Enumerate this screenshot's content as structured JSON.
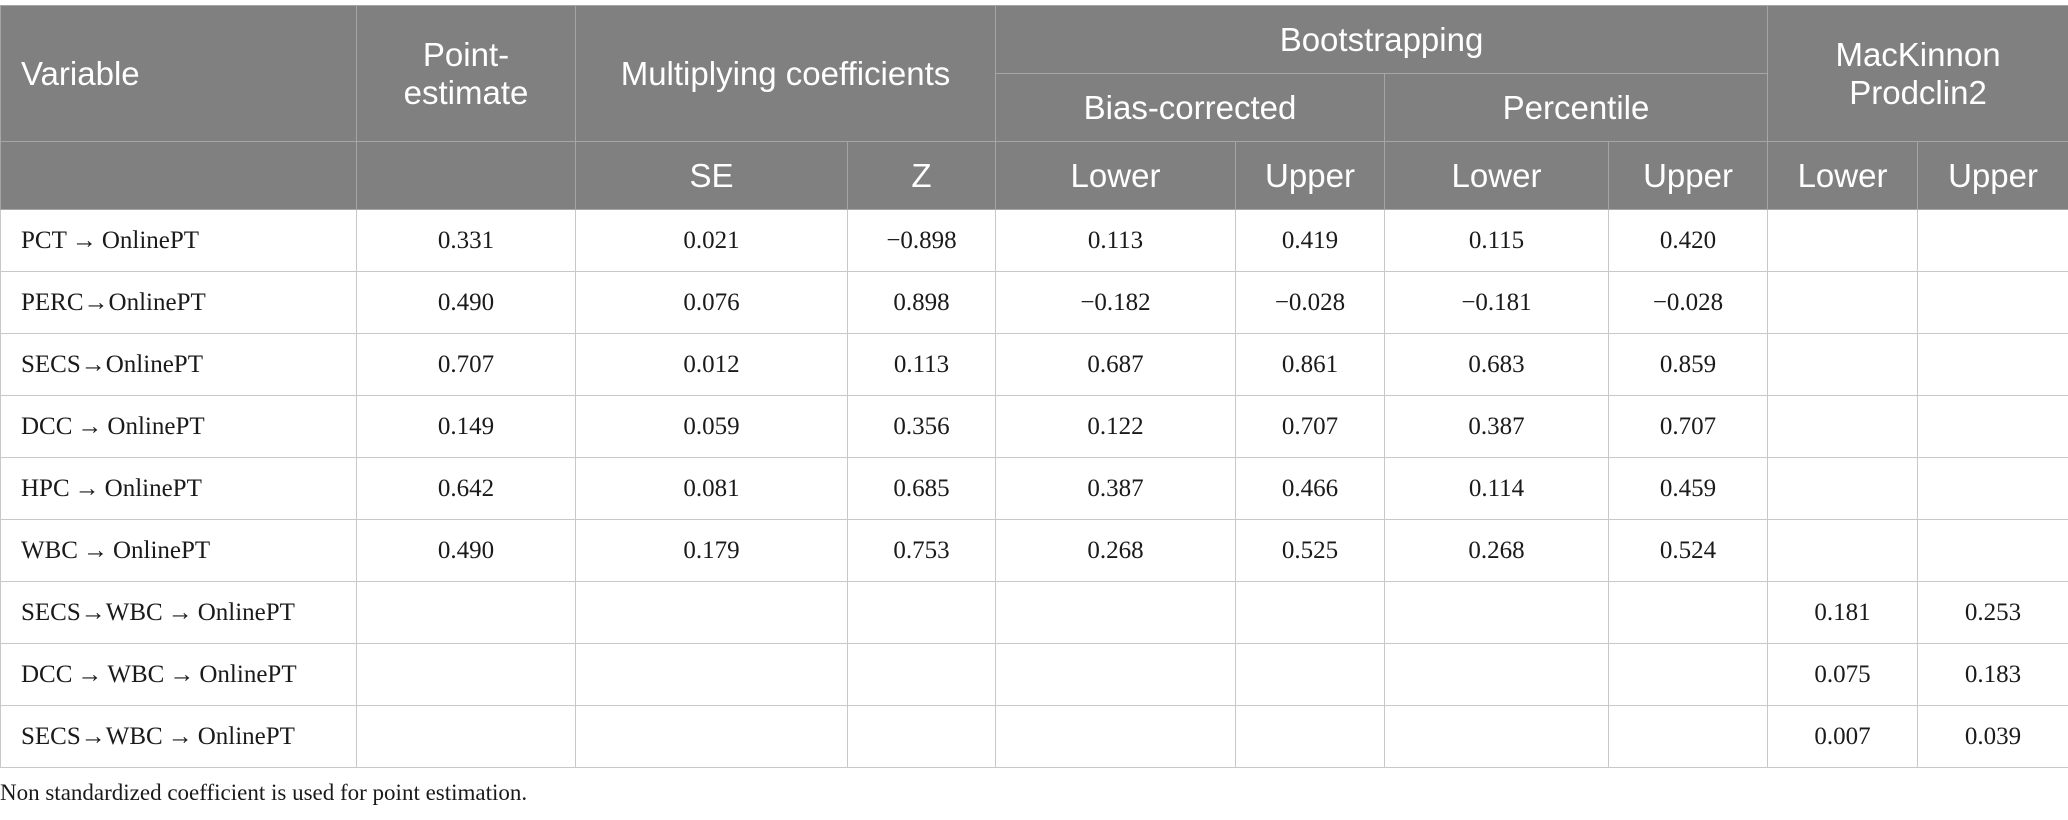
{
  "headers": {
    "variable": "Variable",
    "point_estimate": "Point-estimate",
    "multiplying": "Multiplying coefficients",
    "bootstrapping": "Bootstrapping",
    "mackinnon": "MacKinnon Prodclin2",
    "bias_corrected": "Bias-corrected",
    "percentile": "Percentile",
    "se": "SE",
    "z": "Z",
    "lower": "Lower",
    "upper": "Upper"
  },
  "rows": [
    {
      "label": "PCT → OnlinePT",
      "point": "0.331",
      "se": "0.021",
      "z": "−0.898",
      "bc_lower": "0.113",
      "bc_upper": "0.419",
      "pc_lower": "0.115",
      "pc_upper": "0.420",
      "mk_lower": "",
      "mk_upper": ""
    },
    {
      "label": "PERC→OnlinePT",
      "point": "0.490",
      "se": "0.076",
      "z": "0.898",
      "bc_lower": "−0.182",
      "bc_upper": "−0.028",
      "pc_lower": "−0.181",
      "pc_upper": "−0.028",
      "mk_lower": "",
      "mk_upper": ""
    },
    {
      "label": "SECS→OnlinePT",
      "point": "0.707",
      "se": "0.012",
      "z": "0.113",
      "bc_lower": "0.687",
      "bc_upper": "0.861",
      "pc_lower": "0.683",
      "pc_upper": "0.859",
      "mk_lower": "",
      "mk_upper": ""
    },
    {
      "label": "DCC → OnlinePT",
      "point": "0.149",
      "se": "0.059",
      "z": "0.356",
      "bc_lower": "0.122",
      "bc_upper": "0.707",
      "pc_lower": "0.387",
      "pc_upper": "0.707",
      "mk_lower": "",
      "mk_upper": ""
    },
    {
      "label": "HPC → OnlinePT",
      "point": "0.642",
      "se": "0.081",
      "z": "0.685",
      "bc_lower": "0.387",
      "bc_upper": "0.466",
      "pc_lower": "0.114",
      "pc_upper": "0.459",
      "mk_lower": "",
      "mk_upper": ""
    },
    {
      "label": "WBC → OnlinePT",
      "point": "0.490",
      "se": "0.179",
      "z": "0.753",
      "bc_lower": "0.268",
      "bc_upper": "0.525",
      "pc_lower": "0.268",
      "pc_upper": "0.524",
      "mk_lower": "",
      "mk_upper": ""
    },
    {
      "label": "SECS→WBC → OnlinePT",
      "point": "",
      "se": "",
      "z": "",
      "bc_lower": "",
      "bc_upper": "",
      "pc_lower": "",
      "pc_upper": "",
      "mk_lower": "0.181",
      "mk_upper": "0.253"
    },
    {
      "label": "DCC → WBC → OnlinePT",
      "point": "",
      "se": "",
      "z": "",
      "bc_lower": "",
      "bc_upper": "",
      "pc_lower": "",
      "pc_upper": "",
      "mk_lower": "0.075",
      "mk_upper": "0.183"
    },
    {
      "label": "SECS→WBC → OnlinePT",
      "point": "",
      "se": "",
      "z": "",
      "bc_lower": "",
      "bc_upper": "",
      "pc_lower": "",
      "pc_upper": "",
      "mk_lower": "0.007",
      "mk_upper": "0.039"
    }
  ],
  "footnote": "Non standardized coefficient is used for point estimation."
}
